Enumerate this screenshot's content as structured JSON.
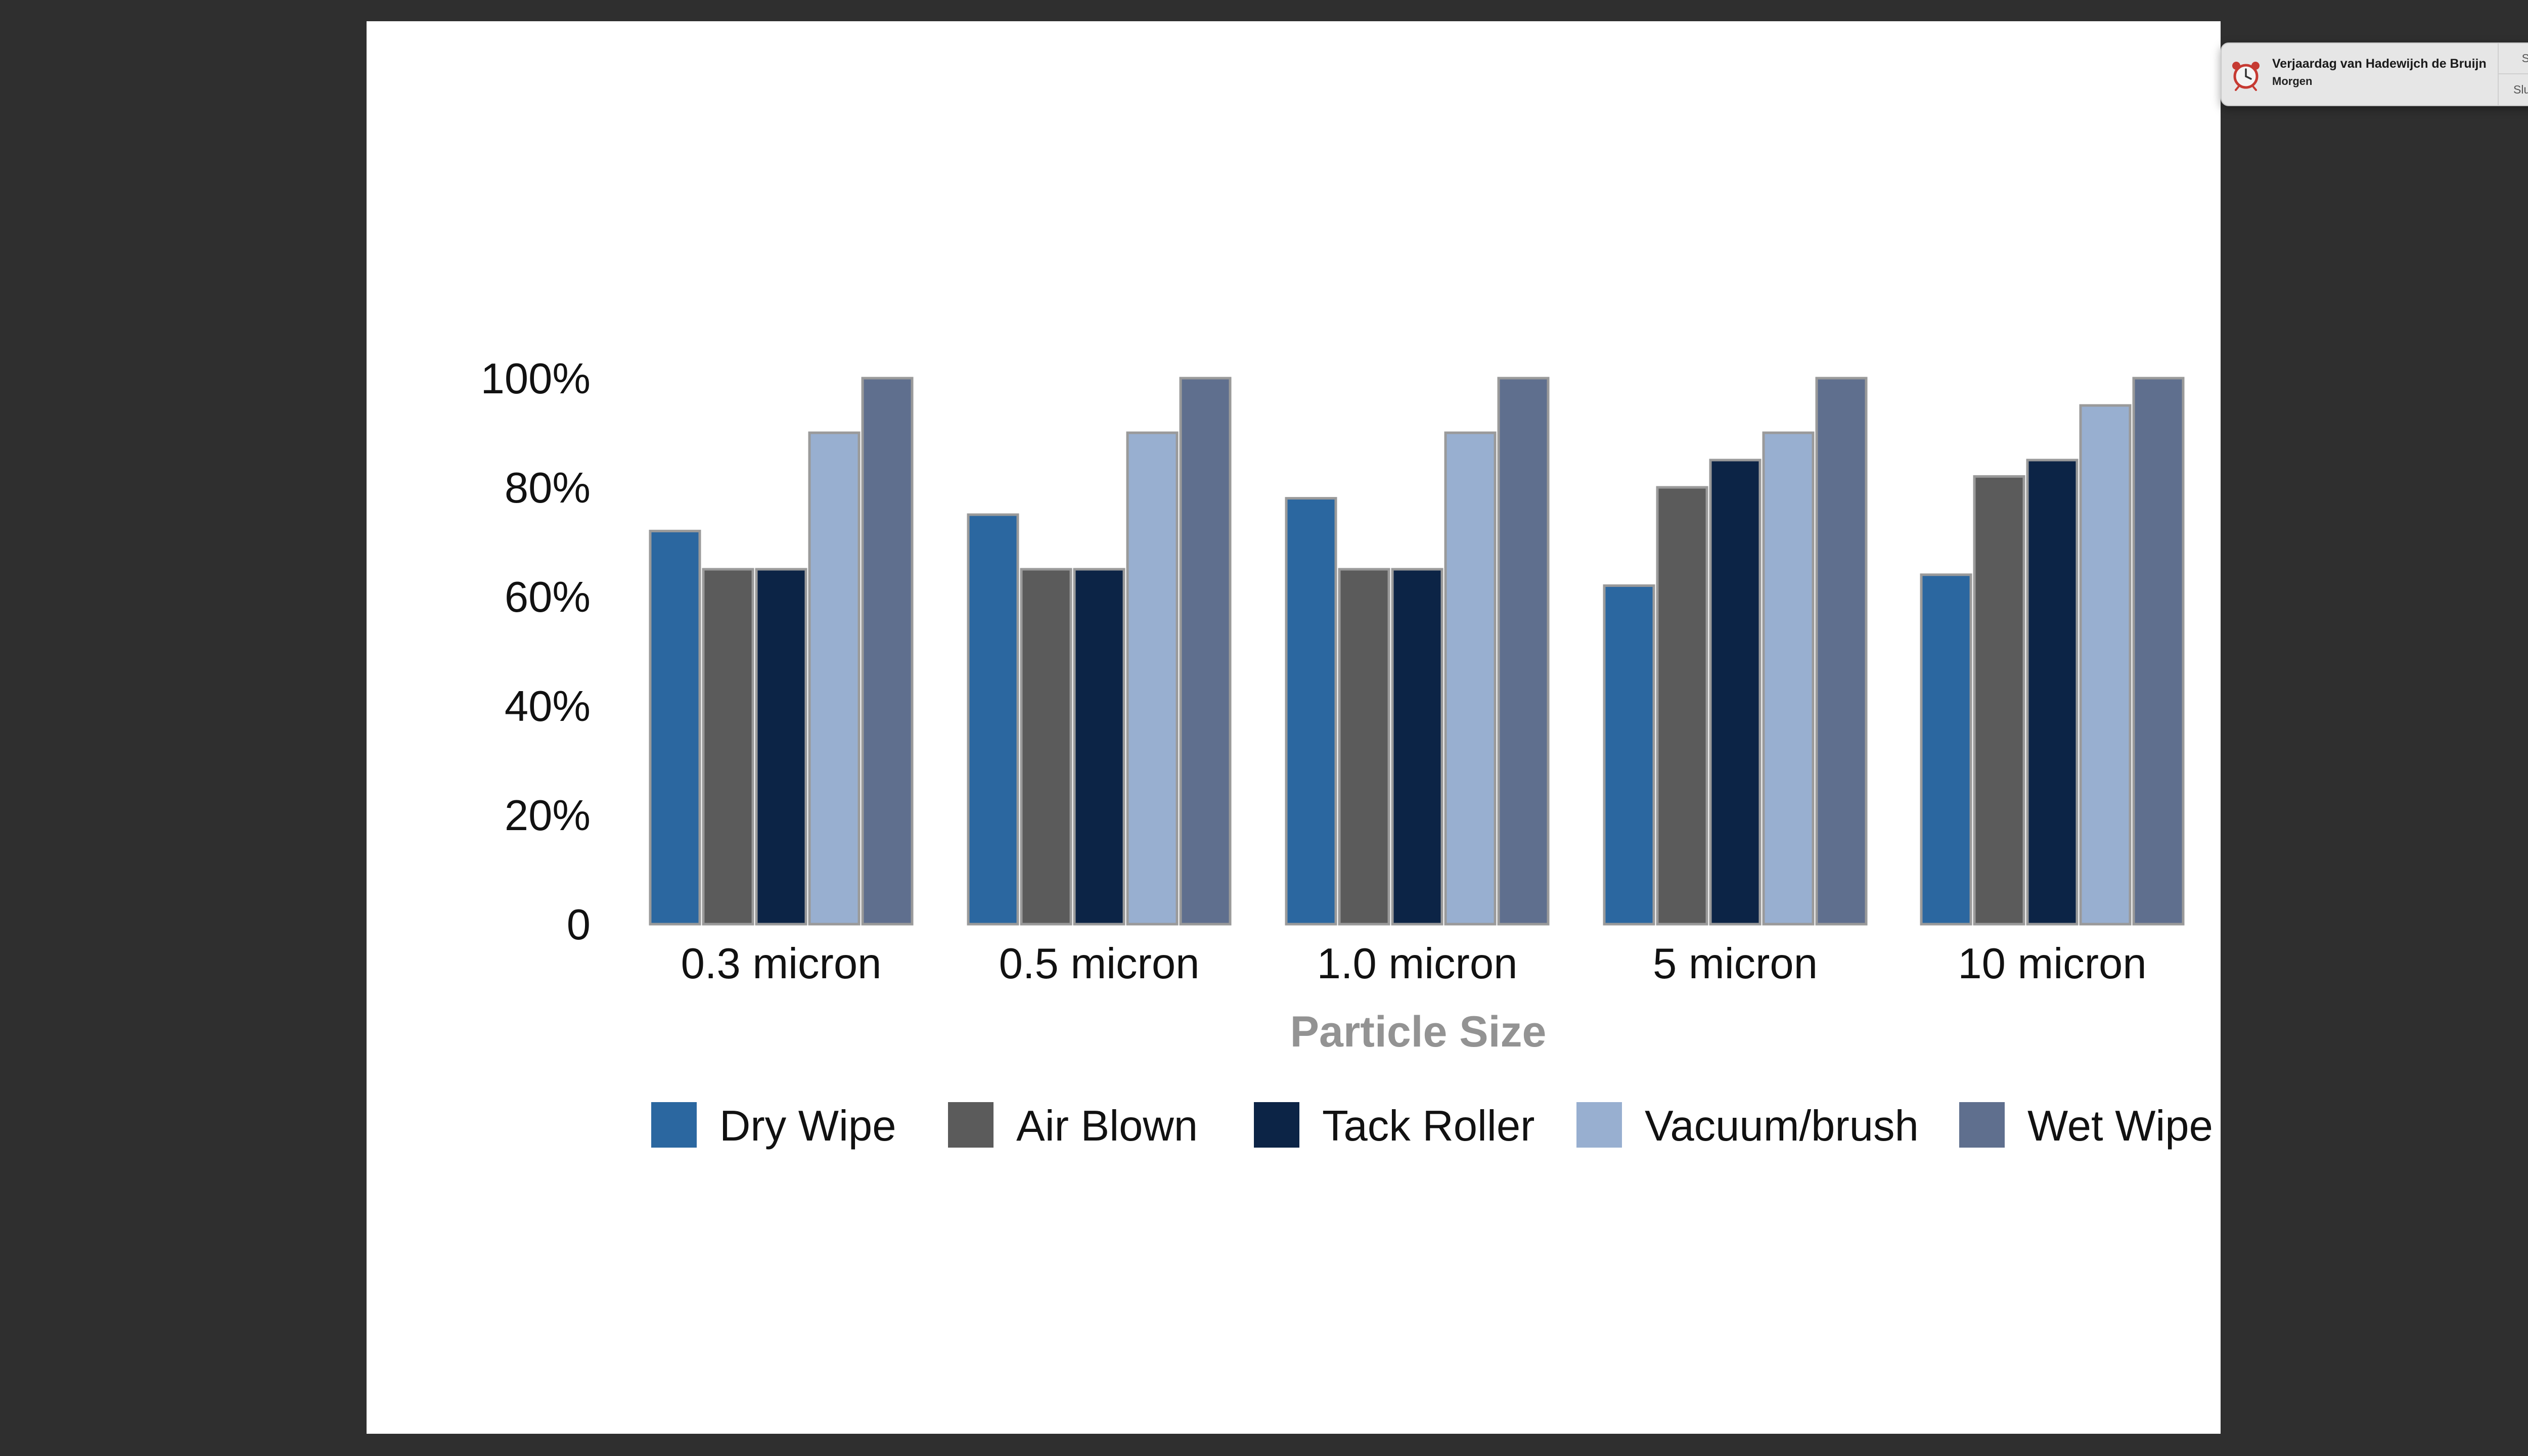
{
  "colors": {
    "background": "#2f2f2f",
    "slide": "#ffffff",
    "series": [
      "#2b67a0",
      "#5b5b5b",
      "#0c2446",
      "#98afd0",
      "#5f6f8e"
    ],
    "bar_border": "#9a9a9a"
  },
  "notification": {
    "icon": "alarm-clock-icon",
    "title": "Verjaardag van Hadewijch de Bruijn",
    "subtitle": "Morgen",
    "close_label": "Sluit",
    "snooze_label": "Sluimer"
  },
  "chart_data": {
    "type": "bar",
    "categories": [
      "0.3 micron",
      "0.5 micron",
      "1.0 micron",
      "5 micron",
      "10 micron"
    ],
    "series": [
      {
        "name": "Dry Wipe",
        "values": [
          72,
          75,
          78,
          62,
          64
        ]
      },
      {
        "name": "Air Blown",
        "values": [
          65,
          65,
          65,
          80,
          82
        ]
      },
      {
        "name": "Tack Roller",
        "values": [
          65,
          65,
          65,
          85,
          85
        ]
      },
      {
        "name": "Vacuum/brush",
        "values": [
          90,
          90,
          90,
          90,
          95
        ]
      },
      {
        "name": "Wet Wipe",
        "values": [
          100,
          100,
          100,
          100,
          100
        ]
      }
    ],
    "title": "",
    "xlabel": "Particle Size",
    "ylabel": "",
    "ylim": [
      0,
      100
    ],
    "yticks": [
      0,
      20,
      40,
      60,
      80,
      100
    ],
    "ytick_labels": [
      "0",
      "20%",
      "40%",
      "60%",
      "80%",
      "100%"
    ],
    "grid": false,
    "legend": "bottom"
  }
}
